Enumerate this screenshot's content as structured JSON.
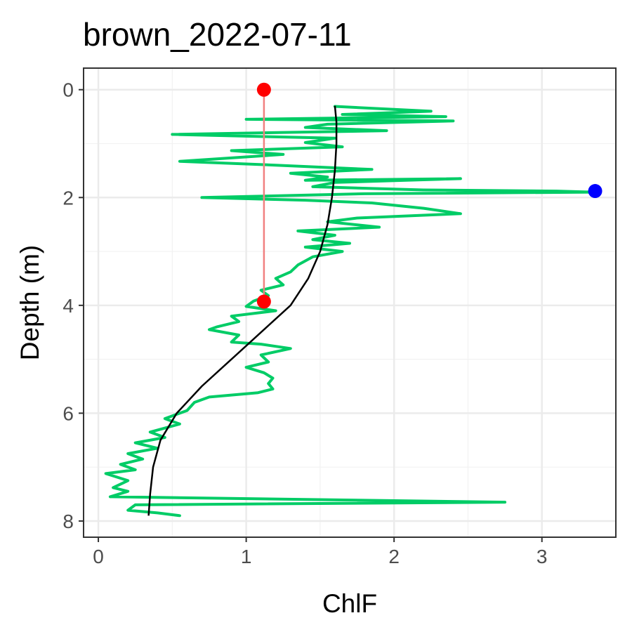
{
  "chart_data": {
    "type": "line",
    "title": "brown_2022-07-11",
    "xlabel": "ChlF",
    "ylabel": "Depth (m)",
    "xlim": [
      -0.1,
      3.5
    ],
    "ylim": [
      8.3,
      -0.4
    ],
    "y_reversed": true,
    "x_ticks": [
      "0",
      "1",
      "2",
      "3"
    ],
    "y_ticks": [
      "0",
      "2",
      "4",
      "6",
      "8"
    ],
    "grid": true,
    "colors": {
      "profile": "#00cc66",
      "fit": "#000000",
      "segment_line": "#f08080",
      "segment_points": "#ff0000",
      "max_point": "#0000ff"
    },
    "series": [
      {
        "role": "profile",
        "points": [
          [
            1.6,
            0.31
          ],
          [
            2.25,
            0.4
          ],
          [
            1.65,
            0.46
          ],
          [
            2.35,
            0.5
          ],
          [
            1.0,
            0.55
          ],
          [
            2.4,
            0.58
          ],
          [
            1.55,
            0.64
          ],
          [
            1.4,
            0.7
          ],
          [
            1.95,
            0.76
          ],
          [
            0.5,
            0.83
          ],
          [
            1.6,
            0.9
          ],
          [
            1.4,
            0.98
          ],
          [
            1.65,
            1.06
          ],
          [
            0.9,
            1.13
          ],
          [
            1.25,
            1.2
          ],
          [
            0.55,
            1.33
          ],
          [
            1.2,
            1.4
          ],
          [
            1.85,
            1.48
          ],
          [
            1.3,
            1.55
          ],
          [
            1.55,
            1.62
          ],
          [
            1.4,
            1.68
          ],
          [
            2.45,
            1.65
          ],
          [
            1.6,
            1.72
          ],
          [
            1.45,
            1.8
          ],
          [
            2.2,
            1.86
          ],
          [
            3.1,
            1.88
          ],
          [
            3.35,
            1.9
          ],
          [
            1.8,
            1.93
          ],
          [
            0.7,
            2.0
          ],
          [
            1.4,
            2.05
          ],
          [
            1.85,
            2.1
          ],
          [
            2.2,
            2.2
          ],
          [
            2.45,
            2.3
          ],
          [
            1.75,
            2.38
          ],
          [
            1.55,
            2.45
          ],
          [
            1.9,
            2.55
          ],
          [
            1.35,
            2.62
          ],
          [
            1.6,
            2.7
          ],
          [
            1.45,
            2.78
          ],
          [
            1.7,
            2.85
          ],
          [
            1.4,
            2.92
          ],
          [
            1.65,
            3.0
          ],
          [
            1.45,
            3.1
          ],
          [
            1.35,
            3.25
          ],
          [
            1.3,
            3.38
          ],
          [
            1.2,
            3.5
          ],
          [
            1.25,
            3.62
          ],
          [
            1.1,
            3.72
          ],
          [
            1.15,
            3.82
          ],
          [
            1.05,
            3.92
          ],
          [
            1.0,
            4.02
          ],
          [
            1.2,
            4.1
          ],
          [
            0.9,
            4.2
          ],
          [
            0.95,
            4.3
          ],
          [
            0.8,
            4.4
          ],
          [
            0.75,
            4.45
          ],
          [
            0.95,
            4.55
          ],
          [
            0.9,
            4.68
          ],
          [
            1.1,
            4.72
          ],
          [
            1.3,
            4.8
          ],
          [
            1.1,
            4.92
          ],
          [
            1.15,
            5.05
          ],
          [
            1.0,
            5.15
          ],
          [
            1.12,
            5.25
          ],
          [
            1.18,
            5.35
          ],
          [
            1.15,
            5.45
          ],
          [
            1.18,
            5.55
          ],
          [
            1.08,
            5.62
          ],
          [
            0.75,
            5.7
          ],
          [
            0.65,
            5.8
          ],
          [
            0.6,
            5.95
          ],
          [
            0.45,
            6.1
          ],
          [
            0.55,
            6.2
          ],
          [
            0.35,
            6.35
          ],
          [
            0.45,
            6.45
          ],
          [
            0.25,
            6.55
          ],
          [
            0.4,
            6.65
          ],
          [
            0.2,
            6.75
          ],
          [
            0.3,
            6.85
          ],
          [
            0.15,
            6.95
          ],
          [
            0.25,
            7.05
          ],
          [
            0.05,
            7.12
          ],
          [
            0.2,
            7.25
          ],
          [
            0.1,
            7.38
          ],
          [
            0.2,
            7.45
          ],
          [
            0.08,
            7.55
          ],
          [
            2.75,
            7.65
          ],
          [
            0.25,
            7.7
          ],
          [
            0.2,
            7.8
          ],
          [
            0.4,
            7.85
          ],
          [
            0.55,
            7.9
          ]
        ]
      },
      {
        "role": "fit",
        "points": [
          [
            1.6,
            0.3
          ],
          [
            1.61,
            0.6
          ],
          [
            1.61,
            1.0
          ],
          [
            1.6,
            1.5
          ],
          [
            1.58,
            2.0
          ],
          [
            1.55,
            2.5
          ],
          [
            1.5,
            3.0
          ],
          [
            1.42,
            3.5
          ],
          [
            1.3,
            4.0
          ],
          [
            1.1,
            4.5
          ],
          [
            0.9,
            5.0
          ],
          [
            0.7,
            5.5
          ],
          [
            0.53,
            6.0
          ],
          [
            0.42,
            6.5
          ],
          [
            0.37,
            7.0
          ],
          [
            0.35,
            7.5
          ],
          [
            0.34,
            7.9
          ]
        ]
      },
      {
        "role": "segment",
        "points": [
          [
            1.12,
            0.0
          ],
          [
            1.12,
            3.93
          ]
        ]
      },
      {
        "role": "max_point",
        "points": [
          [
            3.36,
            1.88
          ]
        ]
      }
    ]
  }
}
